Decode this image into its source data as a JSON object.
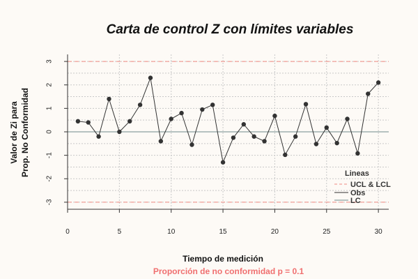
{
  "chart_data": {
    "type": "line",
    "title": "Carta de control Z con límites variables",
    "xlabel": "Tiempo de medición",
    "ylabel_lines": [
      "Valor de Zi para",
      "Prop. No Conformidad"
    ],
    "subtitle": "Proporción de no conformidad p = 0.1",
    "x": [
      1,
      2,
      3,
      4,
      5,
      6,
      7,
      8,
      9,
      10,
      11,
      12,
      13,
      14,
      15,
      16,
      17,
      18,
      19,
      20,
      21,
      22,
      23,
      24,
      25,
      26,
      27,
      28,
      29,
      30
    ],
    "series": [
      {
        "name": "Obs",
        "values": [
          0.45,
          0.4,
          -0.2,
          1.4,
          0.0,
          0.45,
          1.15,
          2.3,
          -0.4,
          0.55,
          0.8,
          -0.55,
          0.95,
          1.15,
          -1.3,
          -0.25,
          0.32,
          -0.2,
          -0.4,
          0.68,
          -0.98,
          -0.2,
          1.18,
          -0.52,
          0.18,
          -0.48,
          0.55,
          -0.92,
          1.62,
          2.1
        ]
      }
    ],
    "reference_lines": {
      "UCL": 3,
      "LCL": -3,
      "LC": 0
    },
    "xlim": [
      0,
      31
    ],
    "ylim": [
      -3.3,
      3.3
    ],
    "x_ticks": [
      "0",
      "5",
      "10",
      "15",
      "20",
      "25",
      "30"
    ],
    "y_ticks": [
      "3",
      "2",
      "1",
      "0",
      "-1",
      "-2",
      "-3"
    ],
    "grid": true,
    "legend": {
      "title": "Lineas",
      "position": "bottom-right",
      "entries": [
        "UCL & LCL",
        "Obs",
        "LC"
      ]
    },
    "colors": {
      "limits": "#f08a82",
      "obs": "#333333",
      "lc": "#6f8b8b",
      "subtitle": "#f07070",
      "grid": "#c8c8c8"
    }
  }
}
